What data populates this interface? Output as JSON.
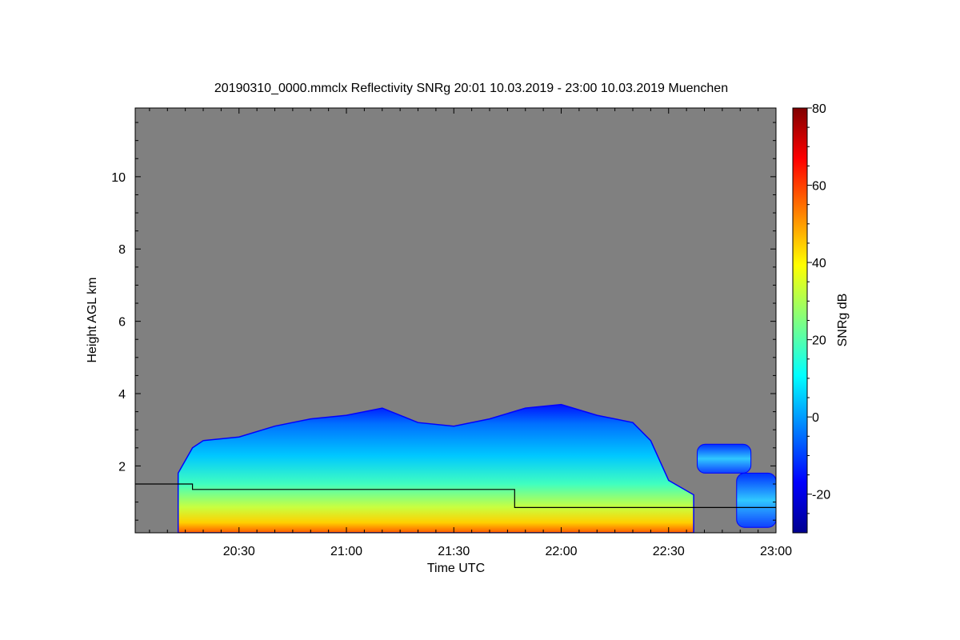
{
  "chart_data": {
    "type": "heatmap",
    "title": "20190310_0000.mmclx Reflectivity SNRg   20:01 10.03.2019 - 23:00 10.03.2019 Muenchen",
    "xlabel": "Time UTC",
    "ylabel": "Height AGL km",
    "colorbar_label": "SNRg dB",
    "x_ticks": [
      "20:30",
      "21:00",
      "21:30",
      "22:00",
      "22:30",
      "23:00"
    ],
    "x_tick_minutes": [
      30,
      60,
      90,
      120,
      150,
      180
    ],
    "xlim_minutes": [
      1,
      180
    ],
    "y_ticks": [
      "2",
      "4",
      "6",
      "8",
      "10"
    ],
    "y_tick_values": [
      2,
      4,
      6,
      8,
      10
    ],
    "ylim": [
      0.15,
      11.9
    ],
    "colorbar_ticks": [
      "-20",
      "0",
      "20",
      "40",
      "60",
      "80"
    ],
    "colorbar_tick_values": [
      -20,
      0,
      20,
      40,
      60,
      80
    ],
    "colorbar_range": [
      -30,
      80
    ],
    "colorscale": "jet",
    "background_color": "#808080",
    "echo_top_km": [
      {
        "t": 13,
        "h": 1.8
      },
      {
        "t": 17,
        "h": 2.5
      },
      {
        "t": 20,
        "h": 2.7
      },
      {
        "t": 30,
        "h": 2.8
      },
      {
        "t": 40,
        "h": 3.1
      },
      {
        "t": 50,
        "h": 3.3
      },
      {
        "t": 60,
        "h": 3.4
      },
      {
        "t": 70,
        "h": 3.6
      },
      {
        "t": 80,
        "h": 3.2
      },
      {
        "t": 90,
        "h": 3.1
      },
      {
        "t": 100,
        "h": 3.3
      },
      {
        "t": 110,
        "h": 3.6
      },
      {
        "t": 120,
        "h": 3.7
      },
      {
        "t": 130,
        "h": 3.4
      },
      {
        "t": 140,
        "h": 3.2
      },
      {
        "t": 145,
        "h": 2.7
      },
      {
        "t": 150,
        "h": 1.6
      },
      {
        "t": 157,
        "h": 1.2
      }
    ],
    "isolated_echo_cells": [
      {
        "t_start": 158,
        "t_end": 173,
        "h_bottom": 1.8,
        "h_top": 2.6
      },
      {
        "t_start": 169,
        "t_end": 180,
        "h_bottom": 0.3,
        "h_top": 1.8
      }
    ],
    "overlay_line_km": [
      {
        "t": 1,
        "h": 1.5
      },
      {
        "t": 17,
        "h": 1.5
      },
      {
        "t": 17,
        "h": 1.35
      },
      {
        "t": 107,
        "h": 1.35
      },
      {
        "t": 107,
        "h": 0.85
      },
      {
        "t": 180,
        "h": 0.85
      }
    ]
  }
}
